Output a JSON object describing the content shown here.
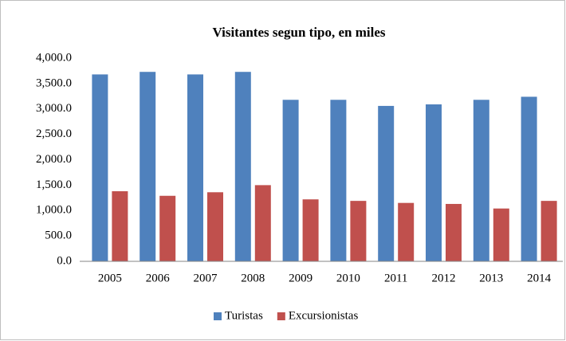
{
  "chart_data": {
    "type": "bar",
    "title": "Visitantes segun tipo, en miles",
    "categories": [
      "2005",
      "2006",
      "2007",
      "2008",
      "2009",
      "2010",
      "2011",
      "2012",
      "2013",
      "2014"
    ],
    "series": [
      {
        "name": "Turistas",
        "color": "#4f81bd",
        "values": [
          3680,
          3730,
          3680,
          3730,
          3180,
          3180,
          3060,
          3090,
          3180,
          3240
        ]
      },
      {
        "name": "Excursionistas",
        "color": "#c0504d",
        "values": [
          1380,
          1290,
          1360,
          1500,
          1220,
          1190,
          1150,
          1130,
          1040,
          1190
        ]
      }
    ],
    "ylim": [
      0,
      4000
    ],
    "yticks": [
      {
        "value": 0,
        "label": "0.0"
      },
      {
        "value": 500,
        "label": "500.0"
      },
      {
        "value": 1000,
        "label": "1,000.0"
      },
      {
        "value": 1500,
        "label": "1,500.0"
      },
      {
        "value": 2000,
        "label": "2,000.0"
      },
      {
        "value": 2500,
        "label": "2,500.0"
      },
      {
        "value": 3000,
        "label": "3,000.0"
      },
      {
        "value": 3500,
        "label": "3,500.0"
      },
      {
        "value": 4000,
        "label": "4,000.0"
      }
    ],
    "grid": false,
    "legend": "bottom"
  }
}
